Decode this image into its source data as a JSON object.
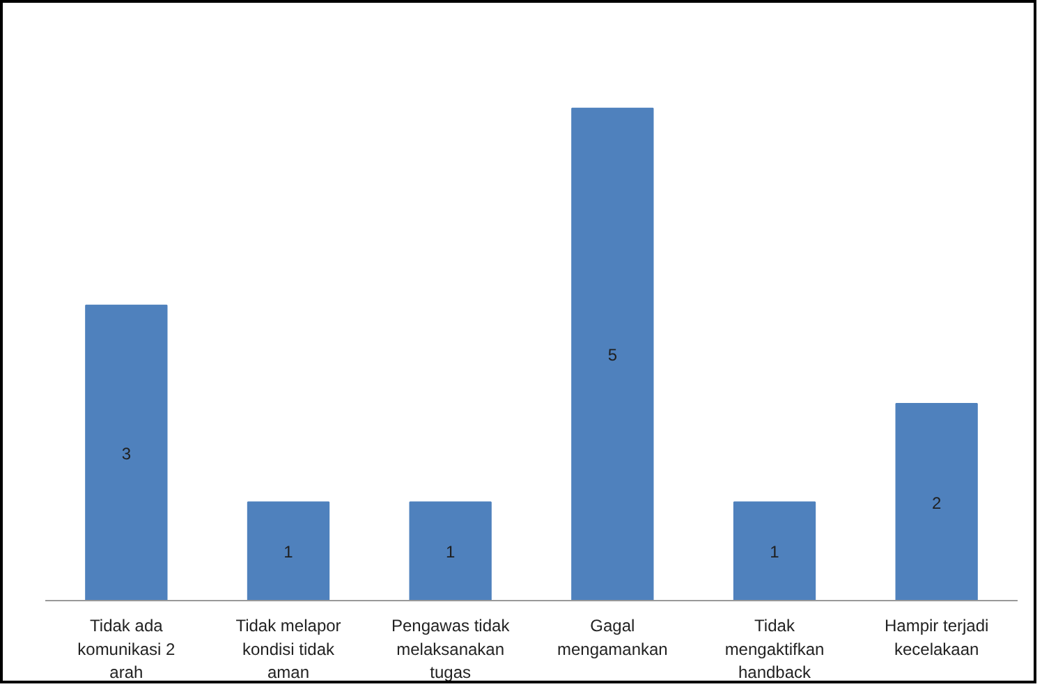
{
  "chart_data": {
    "type": "bar",
    "categories": [
      "Tidak ada komunikasi 2 arah",
      "Tidak melapor kondisi tidak aman",
      "Pengawas tidak melaksanakan tugas",
      "Gagal mengamankan",
      "Tidak mengaktifkan handback",
      "Hampir terjadi kecelakaan"
    ],
    "values": [
      3,
      1,
      1,
      5,
      1,
      2
    ],
    "color": "#4f81bd",
    "data_labels": true,
    "grid": false
  }
}
